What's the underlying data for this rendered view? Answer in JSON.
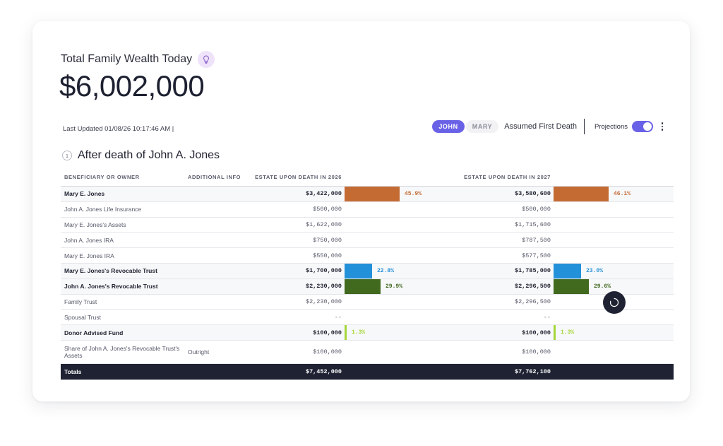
{
  "header": {
    "title": "Total Family Wealth Today",
    "amount": "$6,002,000",
    "last_updated": "Last Updated 01/08/26 10:17:46 AM |",
    "icon": "lightbulb-icon"
  },
  "controls": {
    "person_tabs": [
      "JOHN",
      "MARY"
    ],
    "selected": "JOHN",
    "assumed_label": "Assumed First Death",
    "projections_label": "Projections",
    "projections_on": true
  },
  "section": {
    "number": "1",
    "title": "After death of John A. Jones"
  },
  "table": {
    "headers": {
      "name": "BENEFICIARY OR OWNER",
      "info": "ADDITIONAL INFO",
      "col1": "ESTATE UPON DEATH IN 2026",
      "col2": "ESTATE UPON DEATH IN 2027"
    },
    "rows": [
      {
        "name": "Mary E. Jones",
        "info": "",
        "v1": "$3,422,000",
        "v2": "$3,580,600",
        "bold": true,
        "p1": "45.9%",
        "p2": "46.1%",
        "f1": 0.459,
        "f2": 0.461,
        "color": "#c46a33"
      },
      {
        "name": "John A. Jones Life Insurance",
        "info": "",
        "v1": "$500,000",
        "v2": "$500,000"
      },
      {
        "name": "Mary E. Jones's Assets",
        "info": "",
        "v1": "$1,622,000",
        "v2": "$1,715,600"
      },
      {
        "name": "John A. Jones IRA",
        "info": "",
        "v1": "$750,000",
        "v2": "$787,500"
      },
      {
        "name": "Mary E. Jones IRA",
        "info": "",
        "v1": "$550,000",
        "v2": "$577,500"
      },
      {
        "name": "Mary E. Jones's Revocable Trust",
        "info": "",
        "v1": "$1,700,000",
        "v2": "$1,785,000",
        "bold": true,
        "p1": "22.8%",
        "p2": "23.0%",
        "f1": 0.228,
        "f2": 0.23,
        "color": "#2391d9"
      },
      {
        "name": "John A. Jones's Revocable Trust",
        "info": "",
        "v1": "$2,230,000",
        "v2": "$2,296,500",
        "bold": true,
        "p1": "29.9%",
        "p2": "29.6%",
        "f1": 0.299,
        "f2": 0.296,
        "color": "#416a1f"
      },
      {
        "name": "Family Trust",
        "info": "",
        "v1": "$2,230,000",
        "v2": "$2,296,500"
      },
      {
        "name": "Spousal Trust",
        "info": "",
        "v1": "--",
        "v2": "--"
      },
      {
        "name": "Donor Advised Fund",
        "info": "",
        "v1": "$100,000",
        "v2": "$100,000",
        "bold": true,
        "p1": "1.3%",
        "p2": "1.3%",
        "f1": 0.013,
        "f2": 0.013,
        "color": "#a6d63a"
      },
      {
        "name": "Share of John A. Jones's Revocable Trust's Assets",
        "info": "Outright",
        "v1": "$100,000",
        "v2": "$100,000",
        "tall": true
      }
    ],
    "totals": {
      "name": "Totals",
      "v1": "$7,452,000",
      "v2": "$7,762,100"
    }
  }
}
